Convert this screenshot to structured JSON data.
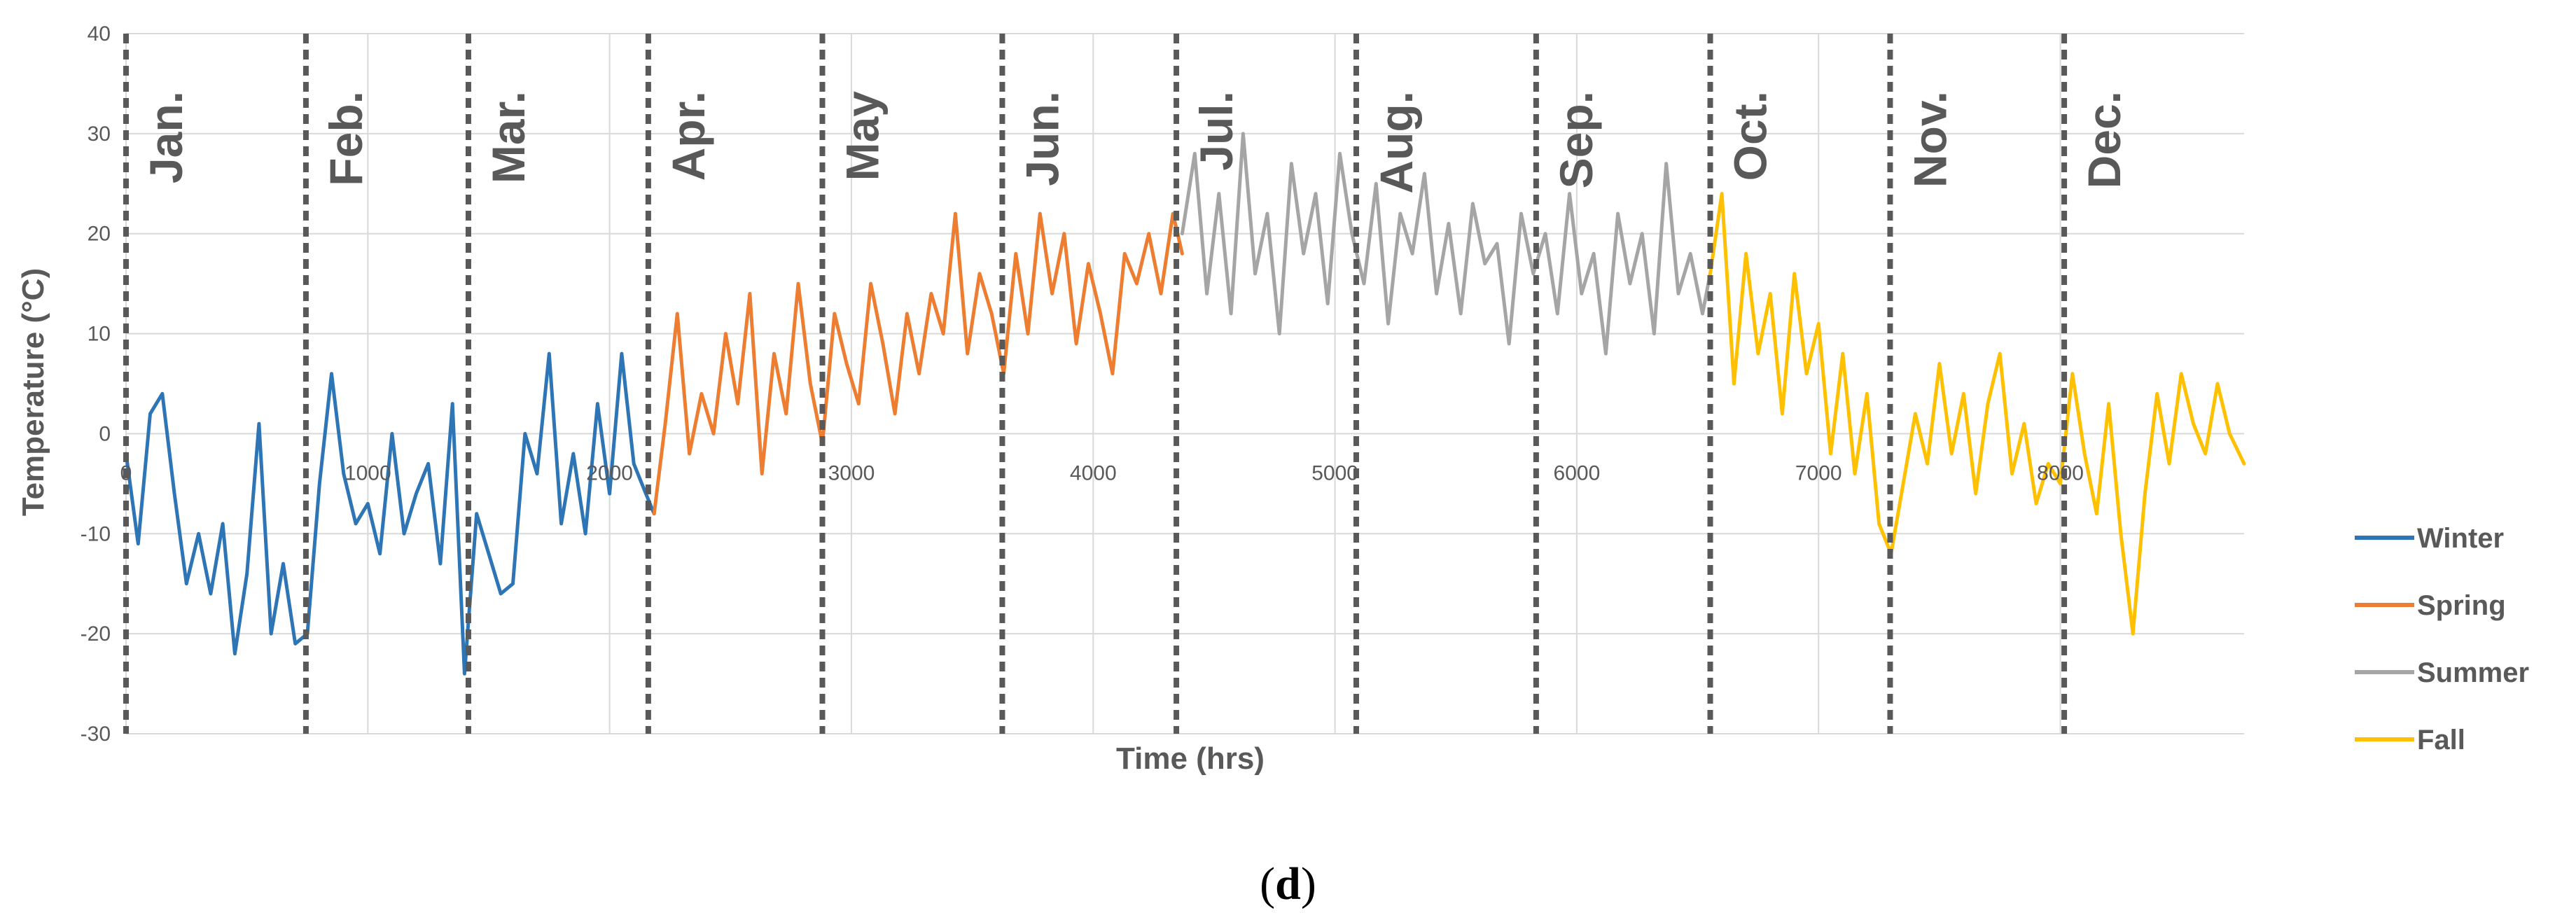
{
  "caption": {
    "open": "(",
    "letter": "d",
    "close": ")"
  },
  "chart_data": {
    "type": "line",
    "title": "",
    "xlabel": "Time (hrs)",
    "ylabel": "Temperature (°C)",
    "xlim": [
      0,
      8760
    ],
    "ylim": [
      -30,
      40
    ],
    "yticks": [
      -30,
      -20,
      -10,
      0,
      10,
      20,
      30,
      40
    ],
    "xticks": [
      0,
      1000,
      2000,
      3000,
      4000,
      5000,
      6000,
      7000,
      8000
    ],
    "ytick_labels": [
      "-30",
      "-20",
      "-10",
      "0",
      "10",
      "20",
      "30",
      "40"
    ],
    "xtick_labels": [
      "0",
      "1000",
      "2000",
      "3000",
      "4000",
      "5000",
      "6000",
      "7000",
      "8000"
    ],
    "grid": true,
    "legend_position": "right",
    "months": [
      {
        "label": "Jan.",
        "start": 0
      },
      {
        "label": "Feb.",
        "start": 744
      },
      {
        "label": "Mar.",
        "start": 1416
      },
      {
        "label": "Apr.",
        "start": 2160
      },
      {
        "label": "May",
        "start": 2880
      },
      {
        "label": "Jun.",
        "start": 3624
      },
      {
        "label": "Jul.",
        "start": 4344
      },
      {
        "label": "Aug.",
        "start": 5088
      },
      {
        "label": "Sep.",
        "start": 5832
      },
      {
        "label": "Oct.",
        "start": 6552
      },
      {
        "label": "Nov.",
        "start": 7296
      },
      {
        "label": "Dec.",
        "start": 8016
      }
    ],
    "series": [
      {
        "name": "Winter",
        "color": "#2E75B6",
        "x": [
          0,
          50,
          100,
          150,
          200,
          250,
          300,
          350,
          400,
          450,
          500,
          550,
          600,
          650,
          700,
          750,
          800,
          850,
          900,
          950,
          1000,
          1050,
          1100,
          1150,
          1200,
          1250,
          1300,
          1350,
          1400,
          1450,
          1500,
          1550,
          1600,
          1650,
          1700,
          1750,
          1800,
          1850,
          1900,
          1950,
          2000,
          2050,
          2100,
          2150,
          2184
        ],
        "y": [
          -2,
          -11,
          2,
          4,
          -6,
          -15,
          -10,
          -16,
          -9,
          -22,
          -14,
          1,
          -20,
          -13,
          -21,
          -20,
          -5,
          6,
          -4,
          -9,
          -7,
          -12,
          0,
          -10,
          -6,
          -3,
          -13,
          3,
          -24,
          -8,
          -12,
          -16,
          -15,
          0,
          -4,
          8,
          -9,
          -2,
          -10,
          3,
          -6,
          8,
          -3,
          -6,
          -8
        ]
      },
      {
        "name": "Spring",
        "color": "#ED7D31",
        "x": [
          2184,
          2230,
          2280,
          2330,
          2380,
          2430,
          2480,
          2530,
          2580,
          2630,
          2680,
          2730,
          2780,
          2830,
          2880,
          2930,
          2980,
          3030,
          3080,
          3130,
          3180,
          3230,
          3280,
          3330,
          3380,
          3430,
          3480,
          3530,
          3580,
          3630,
          3680,
          3730,
          3780,
          3830,
          3880,
          3930,
          3980,
          4030,
          4080,
          4130,
          4180,
          4230,
          4280,
          4330,
          4368
        ],
        "y": [
          -8,
          1,
          12,
          -2,
          4,
          0,
          10,
          3,
          14,
          -4,
          8,
          2,
          15,
          5,
          -1,
          12,
          7,
          3,
          15,
          9,
          2,
          12,
          6,
          14,
          10,
          22,
          8,
          16,
          12,
          6,
          18,
          10,
          22,
          14,
          20,
          9,
          17,
          12,
          6,
          18,
          15,
          20,
          14,
          22,
          18
        ]
      },
      {
        "name": "Summer",
        "color": "#A5A5A5",
        "x": [
          4368,
          4420,
          4470,
          4520,
          4570,
          4620,
          4670,
          4720,
          4770,
          4820,
          4870,
          4920,
          4970,
          5020,
          5070,
          5120,
          5170,
          5220,
          5270,
          5320,
          5370,
          5420,
          5470,
          5520,
          5570,
          5620,
          5670,
          5720,
          5770,
          5820,
          5870,
          5920,
          5970,
          6020,
          6070,
          6120,
          6170,
          6220,
          6270,
          6320,
          6370,
          6420,
          6470,
          6520,
          6552
        ],
        "y": [
          20,
          28,
          14,
          24,
          12,
          30,
          16,
          22,
          10,
          27,
          18,
          24,
          13,
          28,
          20,
          15,
          25,
          11,
          22,
          18,
          26,
          14,
          21,
          12,
          23,
          17,
          19,
          9,
          22,
          16,
          20,
          12,
          24,
          14,
          18,
          8,
          22,
          15,
          20,
          10,
          27,
          14,
          18,
          12,
          16
        ]
      },
      {
        "name": "Fall",
        "color": "#FFC000",
        "x": [
          6552,
          6600,
          6650,
          6700,
          6750,
          6800,
          6850,
          6900,
          6950,
          7000,
          7050,
          7100,
          7150,
          7200,
          7250,
          7300,
          7350,
          7400,
          7450,
          7500,
          7550,
          7600,
          7650,
          7700,
          7750,
          7800,
          7850,
          7900,
          7950,
          8000,
          8050,
          8100,
          8150,
          8200,
          8250,
          8300,
          8350,
          8400,
          8450,
          8500,
          8550,
          8600,
          8650,
          8700,
          8760
        ],
        "y": [
          16,
          24,
          5,
          18,
          8,
          14,
          2,
          16,
          6,
          11,
          -2,
          8,
          -4,
          4,
          -9,
          -12,
          -5,
          2,
          -3,
          7,
          -2,
          4,
          -6,
          3,
          8,
          -4,
          1,
          -7,
          -3,
          -5,
          6,
          -2,
          -8,
          3,
          -10,
          -20,
          -6,
          4,
          -3,
          6,
          1,
          -2,
          5,
          0,
          -3
        ]
      }
    ]
  }
}
